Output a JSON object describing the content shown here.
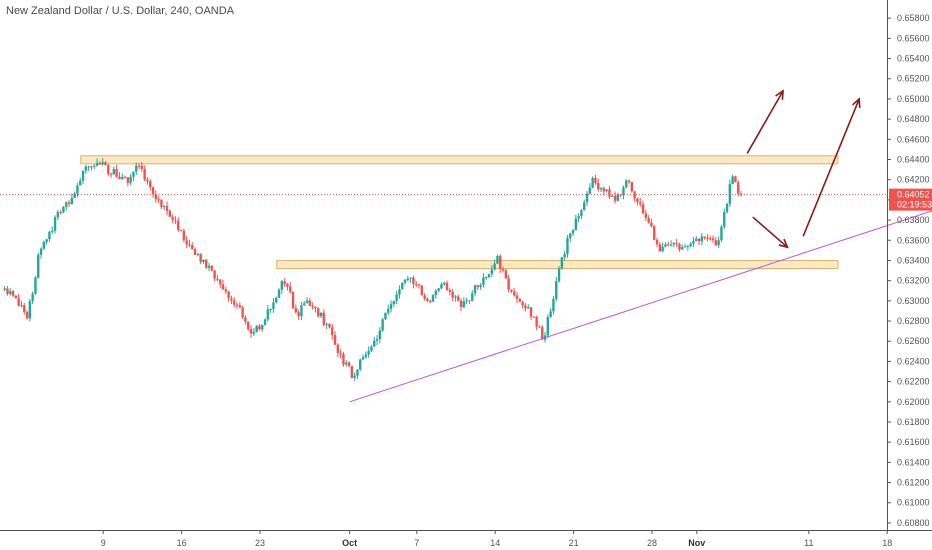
{
  "chart_data": {
    "type": "candlestick",
    "title": "New Zealand Dollar / U.S. Dollar, 240, OANDA",
    "y_ticks": [
      "0.65800",
      "0.65600",
      "0.65400",
      "0.65200",
      "0.65000",
      "0.64800",
      "0.64600",
      "0.64400",
      "0.64200",
      "0.64000",
      "0.63800",
      "0.63600",
      "0.63400",
      "0.63200",
      "0.63000",
      "0.62800",
      "0.62600",
      "0.62400",
      "0.62200",
      "0.62000",
      "0.61800",
      "0.61600",
      "0.61400",
      "0.61200",
      "0.61000",
      "0.60800"
    ],
    "ylim": [
      0.6073,
      0.6598
    ],
    "x_ticks": [
      {
        "label": "9",
        "day": 9,
        "bold": false
      },
      {
        "label": "16",
        "day": 16,
        "bold": false
      },
      {
        "label": "23",
        "day": 23,
        "bold": false
      },
      {
        "label": "Oct",
        "day": 31,
        "bold": true
      },
      {
        "label": "7",
        "day": 37,
        "bold": false
      },
      {
        "label": "14",
        "day": 44,
        "bold": false
      },
      {
        "label": "21",
        "day": 51,
        "bold": false
      },
      {
        "label": "28",
        "day": 58,
        "bold": false
      },
      {
        "label": "Nov",
        "day": 62,
        "bold": true
      },
      {
        "label": "11",
        "day": 72,
        "bold": false
      },
      {
        "label": "18",
        "day": 79,
        "bold": false
      }
    ],
    "x_axis_units": "days since Sep 0",
    "current_price": "0.64052",
    "countdown": "02:19:53",
    "colors": {
      "up": "#26a69a",
      "down": "#ef5350",
      "zone_fill": "#fbe9c6",
      "zone_stroke": "#d9b36b",
      "trendline": "#c355e0",
      "arrow": "#8b1a1a",
      "price_line": "#ef5350"
    },
    "price_path": [
      {
        "day": 1.0,
        "price": 0.6311
      },
      {
        "day": 2.5,
        "price": 0.6283
      },
      {
        "day": 3.5,
        "price": 0.6345
      },
      {
        "day": 4.5,
        "price": 0.6368
      },
      {
        "day": 5.5,
        "price": 0.6392
      },
      {
        "day": 6.5,
        "price": 0.64
      },
      {
        "day": 7.5,
        "price": 0.6432
      },
      {
        "day": 8.5,
        "price": 0.6438
      },
      {
        "day": 9.5,
        "price": 0.6431
      },
      {
        "day": 10.5,
        "price": 0.6426
      },
      {
        "day": 11.5,
        "price": 0.642
      },
      {
        "day": 12.5,
        "price": 0.6435
      },
      {
        "day": 13.0,
        "price": 0.6418
      },
      {
        "day": 14.0,
        "price": 0.6402
      },
      {
        "day": 15.0,
        "price": 0.6389
      },
      {
        "day": 16.0,
        "price": 0.6372
      },
      {
        "day": 17.0,
        "price": 0.6353
      },
      {
        "day": 18.0,
        "price": 0.634
      },
      {
        "day": 19.0,
        "price": 0.6328
      },
      {
        "day": 20.0,
        "price": 0.6307
      },
      {
        "day": 21.5,
        "price": 0.629
      },
      {
        "day": 22.5,
        "price": 0.6265
      },
      {
        "day": 23.5,
        "price": 0.628
      },
      {
        "day": 24.5,
        "price": 0.63
      },
      {
        "day": 25.5,
        "price": 0.6322
      },
      {
        "day": 26.5,
        "price": 0.6283
      },
      {
        "day": 27.5,
        "price": 0.6302
      },
      {
        "day": 28.5,
        "price": 0.6288
      },
      {
        "day": 29.5,
        "price": 0.627
      },
      {
        "day": 30.5,
        "price": 0.6243
      },
      {
        "day": 31.5,
        "price": 0.6226
      },
      {
        "day": 32.5,
        "price": 0.6245
      },
      {
        "day": 33.5,
        "price": 0.6262
      },
      {
        "day": 34.5,
        "price": 0.6285
      },
      {
        "day": 35.5,
        "price": 0.6312
      },
      {
        "day": 36.5,
        "price": 0.6325
      },
      {
        "day": 37.5,
        "price": 0.631
      },
      {
        "day": 38.5,
        "price": 0.63
      },
      {
        "day": 39.5,
        "price": 0.632
      },
      {
        "day": 40.5,
        "price": 0.6305
      },
      {
        "day": 41.5,
        "price": 0.6295
      },
      {
        "day": 42.5,
        "price": 0.6315
      },
      {
        "day": 43.5,
        "price": 0.6323
      },
      {
        "day": 44.5,
        "price": 0.6342
      },
      {
        "day": 45.5,
        "price": 0.6312
      },
      {
        "day": 46.5,
        "price": 0.6298
      },
      {
        "day": 47.5,
        "price": 0.6288
      },
      {
        "day": 48.5,
        "price": 0.6262
      },
      {
        "day": 49.0,
        "price": 0.6282
      },
      {
        "day": 49.5,
        "price": 0.6303
      },
      {
        "day": 50.0,
        "price": 0.6338
      },
      {
        "day": 51.0,
        "price": 0.6366
      },
      {
        "day": 52.0,
        "price": 0.6392
      },
      {
        "day": 53.0,
        "price": 0.642
      },
      {
        "day": 54.0,
        "price": 0.6408
      },
      {
        "day": 55.0,
        "price": 0.6398
      },
      {
        "day": 56.0,
        "price": 0.642
      },
      {
        "day": 57.0,
        "price": 0.6398
      },
      {
        "day": 58.0,
        "price": 0.6375
      },
      {
        "day": 59.0,
        "price": 0.6352
      },
      {
        "day": 60.0,
        "price": 0.6358
      },
      {
        "day": 61.0,
        "price": 0.635
      },
      {
        "day": 62.0,
        "price": 0.6362
      },
      {
        "day": 63.0,
        "price": 0.636
      },
      {
        "day": 64.0,
        "price": 0.6355
      },
      {
        "day": 65.0,
        "price": 0.6402
      },
      {
        "day": 65.5,
        "price": 0.6425
      },
      {
        "day": 66.0,
        "price": 0.6405
      }
    ],
    "zones": [
      {
        "day_start": 7.0,
        "price_low": 0.64357,
        "price_high": 0.64437
      },
      {
        "day_start": 24.5,
        "price_low": 0.6332,
        "price_high": 0.634
      }
    ],
    "trendline": {
      "day1": 31.0,
      "price1": 0.62,
      "day2": 86.0,
      "price2": 0.64
    },
    "arrows": [
      {
        "from_day": 66.5,
        "from_price": 0.6446,
        "to_day": 69.7,
        "to_price": 0.6508
      },
      {
        "from_day": 67.0,
        "from_price": 0.6383,
        "to_day": 70.1,
        "to_price": 0.6353
      },
      {
        "from_day": 71.5,
        "from_price": 0.6364,
        "to_day": 76.5,
        "to_price": 0.65
      }
    ]
  }
}
